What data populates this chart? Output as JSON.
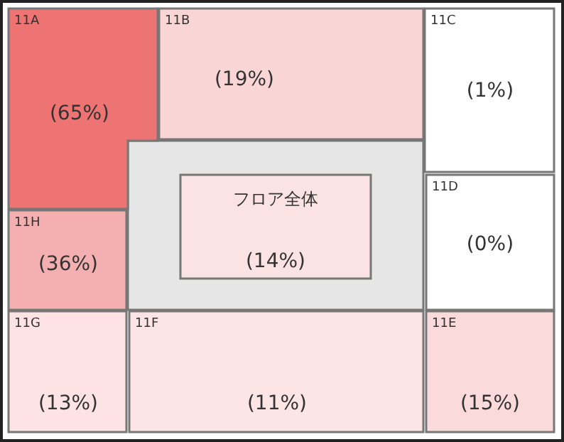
{
  "chart_data": {
    "type": "other",
    "categories": [
      "11A",
      "11B",
      "11C",
      "11D",
      "11E",
      "11F",
      "11G",
      "11H",
      "フロア全体"
    ],
    "values": [
      65,
      19,
      1,
      0,
      15,
      11,
      13,
      36,
      14
    ],
    "value_labels": [
      "(65%)",
      "(19%)",
      "(1%)",
      "(0%)",
      "(15%)",
      "(11%)",
      "(13%)",
      "(36%)",
      "(14%)"
    ],
    "colors": [
      "#ee7373",
      "#f9d5d5",
      "#ffffff",
      "#ffffff",
      "#fadadb",
      "#fde5e5",
      "#fde3e3",
      "#f4b0b0",
      "#fce3e3"
    ]
  }
}
